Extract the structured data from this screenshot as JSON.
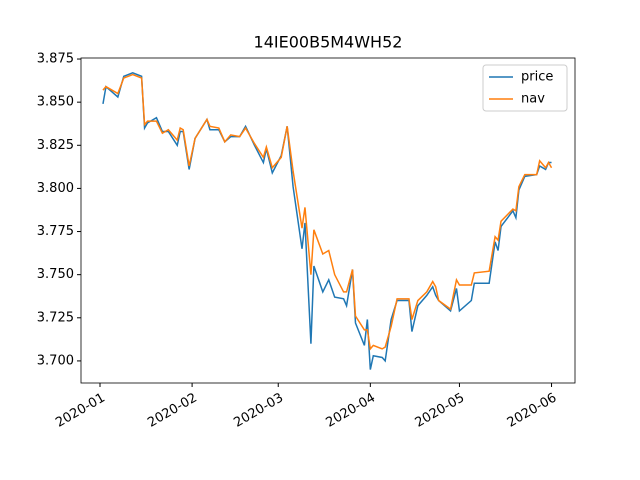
{
  "chart_data": {
    "type": "line",
    "title": "14IE00B5M4WH52",
    "x": [
      1,
      2,
      4,
      6,
      8,
      11,
      14,
      15,
      16,
      19,
      21,
      23,
      26,
      27,
      28,
      30,
      32,
      36,
      37,
      40,
      42,
      44,
      47,
      49,
      52,
      55,
      56,
      58,
      61,
      63,
      65,
      68,
      69,
      71,
      72,
      75,
      77,
      79,
      82,
      83,
      85,
      86,
      89,
      90,
      91,
      92,
      95,
      96,
      98,
      100,
      104,
      105,
      107,
      110,
      112,
      113,
      114,
      118,
      120,
      121,
      125,
      126,
      131,
      133,
      134,
      135,
      139,
      140,
      141,
      143,
      147,
      148,
      150,
      151,
      152
    ],
    "series": [
      {
        "name": "price",
        "color": "#1f77b4",
        "values": [
          3.849,
          3.859,
          3.856,
          3.853,
          3.865,
          3.867,
          3.865,
          3.835,
          3.838,
          3.841,
          3.833,
          3.833,
          3.825,
          3.833,
          3.833,
          3.811,
          3.829,
          3.84,
          3.834,
          3.834,
          3.827,
          3.83,
          3.83,
          3.836,
          3.825,
          3.815,
          3.823,
          3.809,
          3.819,
          3.836,
          3.801,
          3.765,
          3.78,
          3.71,
          3.755,
          3.74,
          3.747,
          3.737,
          3.736,
          3.732,
          3.753,
          3.722,
          3.709,
          3.724,
          3.695,
          3.703,
          3.702,
          3.7,
          3.724,
          3.735,
          3.735,
          3.717,
          3.732,
          3.738,
          3.743,
          3.738,
          3.735,
          3.729,
          3.742,
          3.729,
          3.735,
          3.745,
          3.745,
          3.769,
          3.764,
          3.778,
          3.787,
          3.783,
          3.799,
          3.807,
          3.808,
          3.813,
          3.811,
          3.815,
          3.815
        ]
      },
      {
        "name": "nav",
        "color": "#ff7f0e",
        "values": [
          3.857,
          3.859,
          3.857,
          3.855,
          3.864,
          3.866,
          3.864,
          3.837,
          3.839,
          3.839,
          3.832,
          3.834,
          3.828,
          3.835,
          3.834,
          3.813,
          3.829,
          3.84,
          3.836,
          3.835,
          3.827,
          3.831,
          3.83,
          3.835,
          3.826,
          3.818,
          3.824,
          3.812,
          3.818,
          3.836,
          3.81,
          3.777,
          3.789,
          3.75,
          3.776,
          3.762,
          3.764,
          3.75,
          3.74,
          3.74,
          3.753,
          3.726,
          3.718,
          3.718,
          3.707,
          3.709,
          3.707,
          3.708,
          3.72,
          3.736,
          3.736,
          3.724,
          3.735,
          3.74,
          3.746,
          3.743,
          3.735,
          3.73,
          3.747,
          3.744,
          3.744,
          3.751,
          3.752,
          3.772,
          3.77,
          3.781,
          3.788,
          3.787,
          3.801,
          3.808,
          3.808,
          3.816,
          3.812,
          3.815,
          3.812
        ]
      }
    ],
    "xlim": [
      -6.4,
      159.9
    ],
    "xticks": [
      {
        "value": 0,
        "label": "2020-01"
      },
      {
        "value": 31,
        "label": "2020-02"
      },
      {
        "value": 60,
        "label": "2020-03"
      },
      {
        "value": 91,
        "label": "2020-04"
      },
      {
        "value": 121,
        "label": "2020-05"
      },
      {
        "value": 152,
        "label": "2020-06"
      }
    ],
    "ylim": [
      3.6872,
      3.8756
    ],
    "yticks": [
      {
        "value": 3.7,
        "label": "3.700"
      },
      {
        "value": 3.725,
        "label": "3.725"
      },
      {
        "value": 3.75,
        "label": "3.750"
      },
      {
        "value": 3.775,
        "label": "3.775"
      },
      {
        "value": 3.8,
        "label": "3.800"
      },
      {
        "value": 3.825,
        "label": "3.825"
      },
      {
        "value": 3.85,
        "label": "3.850"
      },
      3.875
    ],
    "legend": "upper right",
    "grid": false
  }
}
